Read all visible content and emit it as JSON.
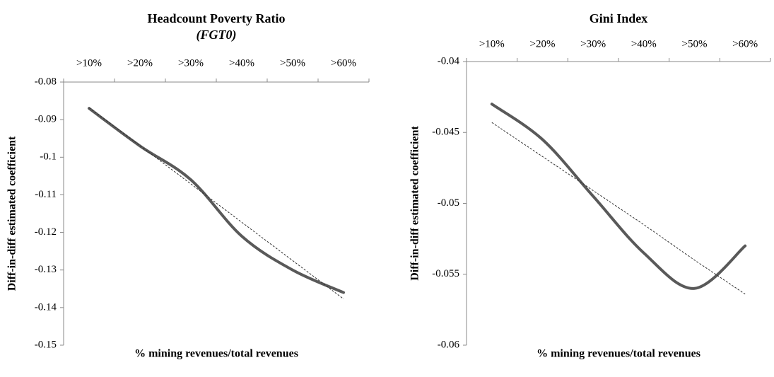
{
  "chart_data": [
    {
      "type": "line",
      "title": "Headcount Poverty Ratio",
      "subtitle": "(FGT0)",
      "y_label": "Diff-in-diff  estimated coefficient",
      "x_label": "% mining revenues/total revenues",
      "categories": [
        ">10%",
        ">20%",
        ">30%",
        ">40%",
        ">50%",
        ">60%"
      ],
      "series": [
        {
          "color": "#595959",
          "values": [
            -0.087,
            -0.097,
            -0.106,
            -0.121,
            -0.13,
            -0.136
          ]
        },
        {
          "color": "#333333",
          "dashed": true,
          "values": [
            -0.0868,
            -0.0969,
            -0.1071,
            -0.1173,
            -0.1275,
            -0.1377
          ]
        }
      ],
      "ylim": [
        -0.15,
        -0.08
      ],
      "yticks": [
        -0.08,
        -0.09,
        -0.1,
        -0.11,
        -0.12,
        -0.13,
        -0.14,
        -0.15
      ]
    },
    {
      "type": "line",
      "title": "Gini Index",
      "y_label": "Diff-in-diff  estimated coefficient",
      "x_label": "% mining revenues/total revenues",
      "categories": [
        ">10%",
        ">20%",
        ">30%",
        ">40%",
        ">50%",
        ">60%"
      ],
      "series": [
        {
          "color": "#595959",
          "values": [
            -0.043,
            -0.0455,
            -0.0495,
            -0.0535,
            -0.056,
            -0.053
          ]
        },
        {
          "color": "#333333",
          "dashed": true,
          "values": [
            -0.0443,
            -0.0467,
            -0.0491,
            -0.0515,
            -0.054,
            -0.0564
          ]
        }
      ],
      "ylim": [
        -0.06,
        -0.04
      ],
      "yticks": [
        -0.04,
        -0.045,
        -0.05,
        -0.055,
        -0.06
      ]
    }
  ]
}
